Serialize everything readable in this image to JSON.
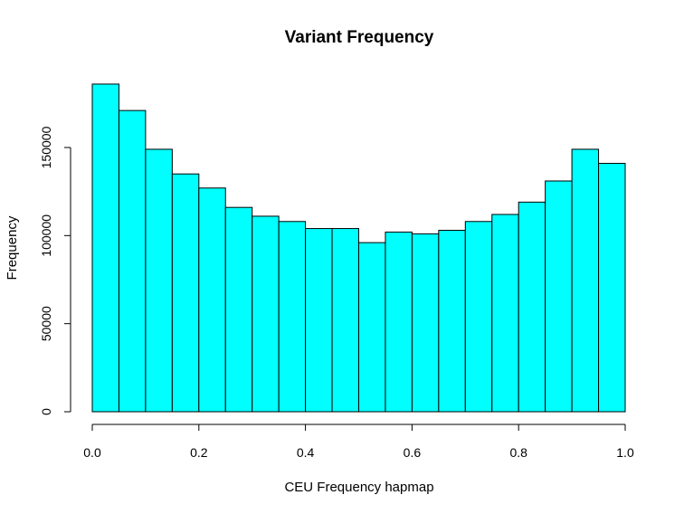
{
  "chart_data": {
    "type": "bar",
    "title": "Variant Frequency",
    "xlabel": "CEU Frequency hapmap",
    "ylabel": "Frequency",
    "bin_edges": [
      0.0,
      0.05,
      0.1,
      0.15,
      0.2,
      0.25,
      0.3,
      0.35,
      0.4,
      0.45,
      0.5,
      0.55,
      0.6,
      0.65,
      0.7,
      0.75,
      0.8,
      0.85,
      0.9,
      0.95,
      1.0
    ],
    "values": [
      186000,
      171000,
      149000,
      135000,
      127000,
      116000,
      111000,
      108000,
      104000,
      104000,
      96000,
      102000,
      101000,
      103000,
      108000,
      112000,
      119000,
      131000,
      149000,
      141000
    ],
    "xlim": [
      0,
      1
    ],
    "ylim": [
      0,
      190000
    ],
    "x_ticks": [
      0.0,
      0.2,
      0.4,
      0.6,
      0.8,
      1.0
    ],
    "x_tick_labels": [
      "0.0",
      "0.2",
      "0.4",
      "0.6",
      "0.8",
      "1.0"
    ],
    "y_ticks": [
      0,
      50000,
      100000,
      150000
    ],
    "y_tick_labels": [
      "0",
      "50000",
      "100000",
      "150000"
    ],
    "bar_color": "#00ffff",
    "edge_color": "#000000",
    "grid": false,
    "legend": "none"
  }
}
